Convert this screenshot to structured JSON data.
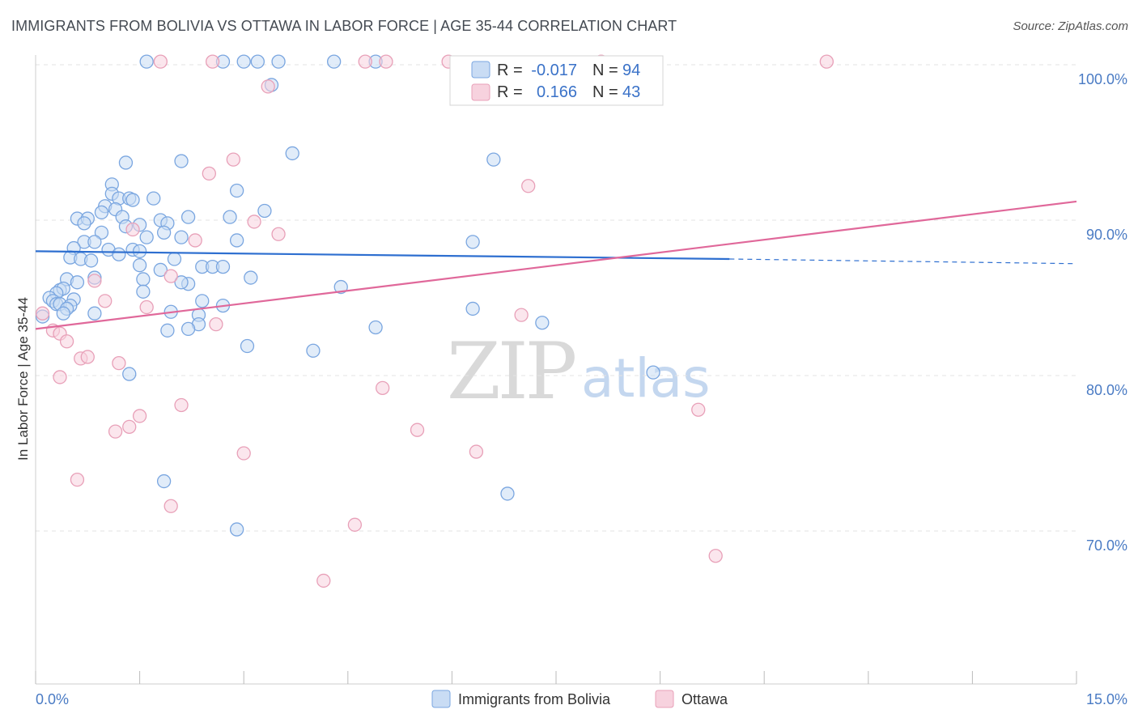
{
  "chart_data": {
    "type": "scatter",
    "title": "IMMIGRANTS FROM BOLIVIA VS OTTAWA IN LABOR FORCE | AGE 35-44 CORRELATION CHART",
    "source": "Source: ZipAtlas.com",
    "ylabel": "In Labor Force | Age 35-44",
    "xlabel": "",
    "xlim": [
      0,
      15
    ],
    "ylim": [
      60,
      100
    ],
    "y_ticks": [
      {
        "value": 100,
        "label": "100.0%"
      },
      {
        "value": 90,
        "label": "90.0%"
      },
      {
        "value": 80,
        "label": "80.0%"
      },
      {
        "value": 70,
        "label": "70.0%"
      }
    ],
    "x_tick_labels": {
      "left": "0.0%",
      "right": "15.0%"
    },
    "watermark": {
      "zip": "ZIP",
      "atlas": "atlas"
    },
    "legend": {
      "r_label": "R =",
      "n_label": "N =",
      "rows": [
        {
          "r": "-0.017",
          "n": "94"
        },
        {
          "r": "0.166",
          "n": "43"
        }
      ]
    },
    "series": [
      {
        "name": "Immigrants from Bolivia",
        "color": "#7aa6e0",
        "fill": "#c9dcf4",
        "line_color": "#2e6fd0",
        "trend": {
          "x0": 0,
          "y0": 88.0,
          "x1": 10.0,
          "y1": 87.5,
          "dash_to_x": 15,
          "dash_to_y": 87.2
        },
        "points": [
          [
            1.6,
            100.2
          ],
          [
            2.7,
            100.2
          ],
          [
            3.0,
            100.2
          ],
          [
            3.2,
            100.2
          ],
          [
            3.5,
            100.2
          ],
          [
            4.3,
            100.2
          ],
          [
            4.9,
            100.2
          ],
          [
            3.4,
            98.7
          ],
          [
            3.7,
            94.3
          ],
          [
            1.3,
            93.7
          ],
          [
            2.1,
            93.8
          ],
          [
            6.6,
            93.9
          ],
          [
            1.1,
            92.3
          ],
          [
            2.9,
            91.9
          ],
          [
            1.1,
            91.7
          ],
          [
            1.2,
            91.4
          ],
          [
            1.35,
            91.4
          ],
          [
            1.4,
            91.3
          ],
          [
            1.7,
            91.4
          ],
          [
            1.0,
            90.9
          ],
          [
            1.15,
            90.7
          ],
          [
            3.3,
            90.6
          ],
          [
            0.95,
            90.5
          ],
          [
            1.25,
            90.2
          ],
          [
            2.2,
            90.2
          ],
          [
            2.8,
            90.2
          ],
          [
            0.6,
            90.1
          ],
          [
            0.75,
            90.1
          ],
          [
            1.8,
            90.0
          ],
          [
            0.7,
            89.8
          ],
          [
            1.9,
            89.8
          ],
          [
            1.3,
            89.6
          ],
          [
            1.5,
            89.7
          ],
          [
            0.95,
            89.2
          ],
          [
            1.85,
            89.2
          ],
          [
            1.6,
            88.9
          ],
          [
            2.1,
            88.9
          ],
          [
            2.9,
            88.7
          ],
          [
            0.7,
            88.6
          ],
          [
            0.85,
            88.6
          ],
          [
            6.3,
            88.6
          ],
          [
            0.55,
            88.2
          ],
          [
            1.05,
            88.1
          ],
          [
            1.4,
            88.1
          ],
          [
            1.5,
            88.0
          ],
          [
            0.5,
            87.6
          ],
          [
            0.65,
            87.5
          ],
          [
            0.8,
            87.4
          ],
          [
            2.0,
            87.5
          ],
          [
            1.5,
            87.1
          ],
          [
            2.4,
            87.0
          ],
          [
            2.55,
            87.0
          ],
          [
            2.7,
            87.0
          ],
          [
            1.8,
            86.8
          ],
          [
            0.85,
            86.3
          ],
          [
            1.55,
            86.2
          ],
          [
            3.1,
            86.3
          ],
          [
            0.45,
            86.2
          ],
          [
            2.2,
            85.9
          ],
          [
            0.35,
            85.5
          ],
          [
            0.4,
            85.6
          ],
          [
            0.3,
            85.3
          ],
          [
            1.55,
            85.4
          ],
          [
            4.4,
            85.7
          ],
          [
            0.2,
            85.0
          ],
          [
            0.25,
            84.8
          ],
          [
            0.55,
            84.9
          ],
          [
            0.3,
            84.6
          ],
          [
            0.35,
            84.6
          ],
          [
            0.5,
            84.5
          ],
          [
            0.45,
            84.3
          ],
          [
            0.4,
            84.0
          ],
          [
            2.4,
            84.8
          ],
          [
            2.7,
            84.5
          ],
          [
            6.3,
            84.3
          ],
          [
            1.95,
            84.1
          ],
          [
            2.35,
            83.9
          ],
          [
            0.1,
            83.8
          ],
          [
            2.35,
            83.3
          ],
          [
            2.2,
            83.0
          ],
          [
            1.9,
            82.9
          ],
          [
            4.9,
            83.1
          ],
          [
            7.3,
            83.4
          ],
          [
            3.05,
            81.9
          ],
          [
            4.0,
            81.6
          ],
          [
            1.35,
            80.1
          ],
          [
            8.9,
            80.2
          ],
          [
            1.85,
            73.2
          ],
          [
            6.8,
            72.4
          ],
          [
            2.9,
            70.1
          ],
          [
            0.85,
            84.0
          ],
          [
            0.6,
            86.0
          ],
          [
            1.2,
            87.8
          ],
          [
            2.1,
            86.0
          ]
        ]
      },
      {
        "name": "Ottawa",
        "color": "#e8a0b8",
        "fill": "#f7d2de",
        "line_color": "#e0689a",
        "trend": {
          "x0": 0,
          "y0": 83.0,
          "x1": 15,
          "y1": 91.2
        },
        "points": [
          [
            1.8,
            100.2
          ],
          [
            2.55,
            100.2
          ],
          [
            4.75,
            100.2
          ],
          [
            5.05,
            100.2
          ],
          [
            5.95,
            100.2
          ],
          [
            8.15,
            100.2
          ],
          [
            11.4,
            100.2
          ],
          [
            3.35,
            98.6
          ],
          [
            2.85,
            93.9
          ],
          [
            2.5,
            93.0
          ],
          [
            7.1,
            92.2
          ],
          [
            3.15,
            89.9
          ],
          [
            1.4,
            89.4
          ],
          [
            3.5,
            89.1
          ],
          [
            2.3,
            88.7
          ],
          [
            1.95,
            86.4
          ],
          [
            0.85,
            86.1
          ],
          [
            1.6,
            84.4
          ],
          [
            1.0,
            84.8
          ],
          [
            2.6,
            83.3
          ],
          [
            7.0,
            83.9
          ],
          [
            0.25,
            82.9
          ],
          [
            0.35,
            82.7
          ],
          [
            0.45,
            82.2
          ],
          [
            0.65,
            81.1
          ],
          [
            0.75,
            81.2
          ],
          [
            1.2,
            80.8
          ],
          [
            0.35,
            79.9
          ],
          [
            5.0,
            79.2
          ],
          [
            2.1,
            78.1
          ],
          [
            9.55,
            77.8
          ],
          [
            1.5,
            77.4
          ],
          [
            1.35,
            76.7
          ],
          [
            1.15,
            76.4
          ],
          [
            5.5,
            76.5
          ],
          [
            6.35,
            75.1
          ],
          [
            3.0,
            75.0
          ],
          [
            0.6,
            73.3
          ],
          [
            1.95,
            71.6
          ],
          [
            4.6,
            70.4
          ],
          [
            9.8,
            68.4
          ],
          [
            4.15,
            66.8
          ],
          [
            0.1,
            84.0
          ]
        ]
      }
    ]
  }
}
